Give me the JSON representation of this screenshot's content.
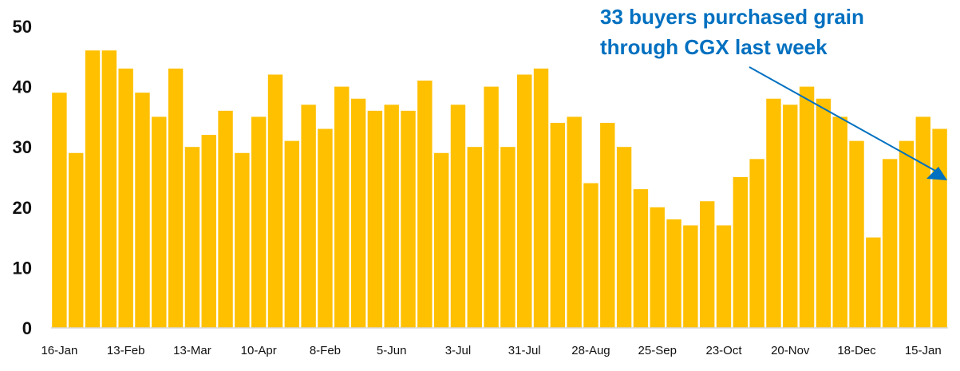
{
  "chart_data": {
    "type": "bar",
    "title": "",
    "xlabel": "",
    "ylabel": "",
    "ylim": [
      0,
      50
    ],
    "yticks": [
      0,
      10,
      20,
      30,
      40,
      50
    ],
    "grid": false,
    "bar_color": "#ffc000",
    "values": [
      39,
      29,
      46,
      46,
      43,
      39,
      35,
      43,
      30,
      32,
      36,
      29,
      35,
      42,
      31,
      37,
      33,
      40,
      38,
      36,
      37,
      36,
      41,
      29,
      37,
      30,
      40,
      30,
      42,
      43,
      34,
      35,
      24,
      34,
      30,
      23,
      20,
      18,
      17,
      21,
      17,
      25,
      28,
      38,
      37,
      40,
      38,
      35,
      31,
      15,
      28,
      31,
      35,
      33
    ],
    "x_tick_labels": [
      {
        "index": 0,
        "label": "16-Jan"
      },
      {
        "index": 4,
        "label": "13-Feb"
      },
      {
        "index": 8,
        "label": "13-Mar"
      },
      {
        "index": 12,
        "label": "10-Apr"
      },
      {
        "index": 16,
        "label": "8-Feb"
      },
      {
        "index": 20,
        "label": "5-Jun"
      },
      {
        "index": 24,
        "label": "3-Jul"
      },
      {
        "index": 28,
        "label": "31-Jul"
      },
      {
        "index": 32,
        "label": "28-Aug"
      },
      {
        "index": 36,
        "label": "25-Sep"
      },
      {
        "index": 40,
        "label": "23-Oct"
      },
      {
        "index": 44,
        "label": "20-Nov"
      },
      {
        "index": 48,
        "label": "18-Dec"
      },
      {
        "index": 52,
        "label": "15-Jan"
      }
    ],
    "annotation": {
      "line1": "33 buyers purchased grain",
      "line2": "through CGX last week",
      "color": "#0070c0",
      "points_to_index": 53
    }
  }
}
